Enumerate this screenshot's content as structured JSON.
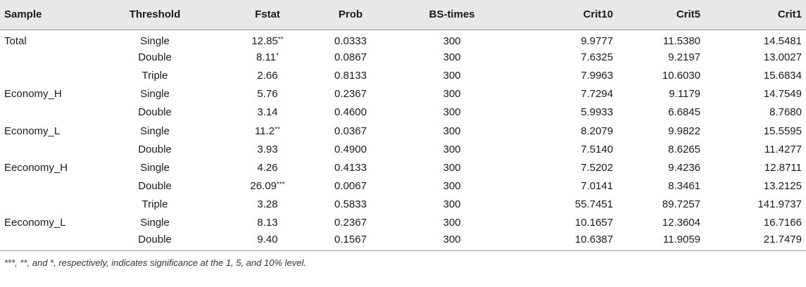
{
  "table": {
    "headers": [
      "Sample",
      "Threshold",
      "Fstat",
      "Prob",
      "BS-times",
      "Crit10",
      "Crit5",
      "Crit1"
    ],
    "rows": [
      {
        "sample": "Total",
        "threshold": "Single",
        "fstat": "12.85",
        "stars": "**",
        "prob": "0.0333",
        "bs": "300",
        "crit10": "9.9777",
        "crit5": "11.5380",
        "crit1": "14.5481"
      },
      {
        "sample": "",
        "threshold": "Double",
        "fstat": "8.11",
        "stars": "*",
        "prob": "0.0867",
        "bs": "300",
        "crit10": "7.6325",
        "crit5": "9.2197",
        "crit1": "13.0027"
      },
      {
        "sample": "",
        "threshold": "Triple",
        "fstat": "2.66",
        "stars": "",
        "prob": "0.8133",
        "bs": "300",
        "crit10": "7.9963",
        "crit5": "10.6030",
        "crit1": "15.6834"
      },
      {
        "sample": "Economy_H",
        "threshold": "Single",
        "fstat": "5.76",
        "stars": "",
        "prob": "0.2367",
        "bs": "300",
        "crit10": "7.7294",
        "crit5": "9.1179",
        "crit1": "14.7549"
      },
      {
        "sample": "",
        "threshold": "Double",
        "fstat": "3.14",
        "stars": "",
        "prob": "0.4600",
        "bs": "300",
        "crit10": "5.9933",
        "crit5": "6.6845",
        "crit1": "8.7680"
      },
      {
        "sample": "Economy_L",
        "threshold": "Single",
        "fstat": "11.2",
        "stars": "**",
        "prob": "0.0367",
        "bs": "300",
        "crit10": "8.2079",
        "crit5": "9.9822",
        "crit1": "15.5595"
      },
      {
        "sample": "",
        "threshold": "Double",
        "fstat": "3.93",
        "stars": "",
        "prob": "0.4900",
        "bs": "300",
        "crit10": "7.5140",
        "crit5": "8.6265",
        "crit1": "11.4277"
      },
      {
        "sample": "Eeconomy_H",
        "threshold": "Single",
        "fstat": "4.26",
        "stars": "",
        "prob": "0.4133",
        "bs": "300",
        "crit10": "7.5202",
        "crit5": "9.4236",
        "crit1": "12.8711"
      },
      {
        "sample": "",
        "threshold": "Double",
        "fstat": "26.09",
        "stars": "***",
        "prob": "0.0067",
        "bs": "300",
        "crit10": "7.0141",
        "crit5": "8.3461",
        "crit1": "13.2125"
      },
      {
        "sample": "",
        "threshold": "Triple",
        "fstat": "3.28",
        "stars": "",
        "prob": "0.5833",
        "bs": "300",
        "crit10": "55.7451",
        "crit5": "89.7257",
        "crit1": "141.9737"
      },
      {
        "sample": "Eeconomy_L",
        "threshold": "Single",
        "fstat": "8.13",
        "stars": "",
        "prob": "0.2367",
        "bs": "300",
        "crit10": "10.1657",
        "crit5": "12.3604",
        "crit1": "16.7166"
      },
      {
        "sample": "",
        "threshold": "Double",
        "fstat": "9.40",
        "stars": "",
        "prob": "0.1567",
        "bs": "300",
        "crit10": "10.6387",
        "crit5": "11.9059",
        "crit1": "21.7479"
      }
    ]
  },
  "footnote": "***, **, and *, respectively, indicates significance at the 1, 5, and 10% level."
}
